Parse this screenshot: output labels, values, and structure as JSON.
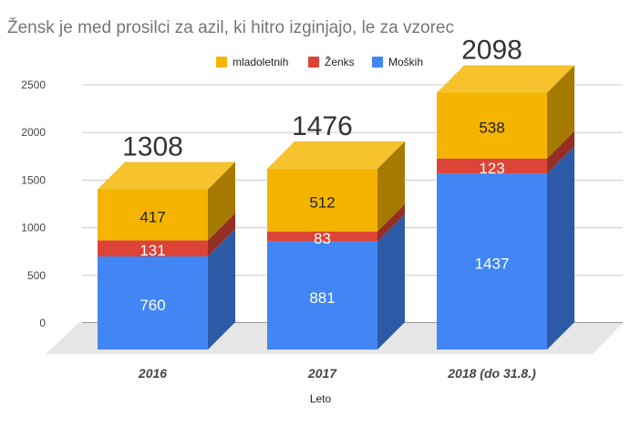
{
  "title": "Žensk je med prosilci za azil, ki hitro izginjajo, le za vzorec",
  "chart_data": {
    "type": "bar",
    "stacked": true,
    "style": "3d",
    "categories": [
      "2016",
      "2017",
      "2018 (do 31.8.)"
    ],
    "series": [
      {
        "name": "Moških",
        "color": "#4285f4",
        "values": [
          760,
          881,
          1437
        ]
      },
      {
        "name": "Ženks",
        "color": "#db4437",
        "values": [
          131,
          83,
          123
        ]
      },
      {
        "name": "mladoletnih",
        "color": "#f4b400",
        "values": [
          417,
          512,
          538
        ]
      }
    ],
    "totals": [
      1308,
      1476,
      2098
    ],
    "legend_order": [
      "mladoletnih",
      "Ženks",
      "Moških"
    ],
    "ylim": [
      0,
      2500
    ],
    "yticks": [
      "0",
      "500",
      "1000",
      "1500",
      "2000",
      "2500"
    ],
    "xlabel": "Leto",
    "ylabel": "",
    "legend": "top",
    "grid": true
  }
}
